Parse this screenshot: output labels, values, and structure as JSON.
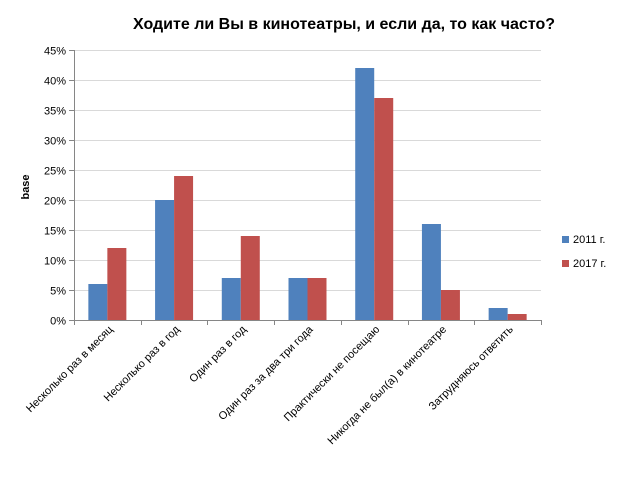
{
  "chart_data": {
    "type": "bar",
    "title": "Ходите ли Вы в кинотеатры, и если да, то как часто?",
    "ylabel": "base",
    "xlabel": "",
    "categories": [
      "Несколько раз в месяц",
      "Несколько раз в год",
      "Один раз в год",
      "Один раз за два три года",
      "Практически не посещаю",
      "Никогда не был(а) в кинотеатре",
      "Затрудняюсь ответить"
    ],
    "series": [
      {
        "name": "2011 г.",
        "color": "#4F81BD",
        "values": [
          6,
          20,
          7,
          7,
          42,
          16,
          2
        ]
      },
      {
        "name": "2017 г.",
        "color": "#C0504D",
        "values": [
          12,
          24,
          14,
          7,
          37,
          5,
          1
        ]
      }
    ],
    "ylim": [
      0,
      45
    ],
    "yticks": [
      "0%",
      "5%",
      "10%",
      "15%",
      "20%",
      "25%",
      "30%",
      "35%",
      "40%",
      "45%"
    ],
    "grid": true,
    "legend_position": "right"
  }
}
